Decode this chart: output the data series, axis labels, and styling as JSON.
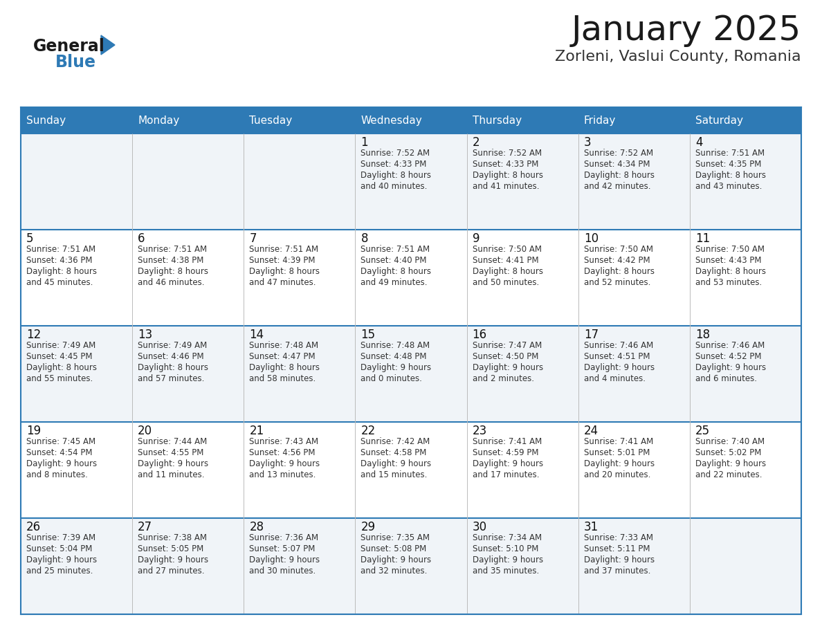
{
  "title": "January 2025",
  "subtitle": "Zorleni, Vaslui County, Romania",
  "days_of_week": [
    "Sunday",
    "Monday",
    "Tuesday",
    "Wednesday",
    "Thursday",
    "Friday",
    "Saturday"
  ],
  "header_bg": "#2E7AB5",
  "header_text": "#FFFFFF",
  "cell_bg_odd": "#F0F4F8",
  "cell_bg_even": "#FFFFFF",
  "border_color": "#2E7AB5",
  "text_color": "#333333",
  "day_num_color": "#111111",
  "logo_text1": "General",
  "logo_text2": "Blue",
  "logo_triangle_color": "#2E7AB5",
  "calendar": [
    [
      {
        "day": null,
        "sunrise": null,
        "sunset": null,
        "daylight": null
      },
      {
        "day": null,
        "sunrise": null,
        "sunset": null,
        "daylight": null
      },
      {
        "day": null,
        "sunrise": null,
        "sunset": null,
        "daylight": null
      },
      {
        "day": 1,
        "sunrise": "7:52 AM",
        "sunset": "4:33 PM",
        "daylight": "8 hours and 40 minutes."
      },
      {
        "day": 2,
        "sunrise": "7:52 AM",
        "sunset": "4:33 PM",
        "daylight": "8 hours and 41 minutes."
      },
      {
        "day": 3,
        "sunrise": "7:52 AM",
        "sunset": "4:34 PM",
        "daylight": "8 hours and 42 minutes."
      },
      {
        "day": 4,
        "sunrise": "7:51 AM",
        "sunset": "4:35 PM",
        "daylight": "8 hours and 43 minutes."
      }
    ],
    [
      {
        "day": 5,
        "sunrise": "7:51 AM",
        "sunset": "4:36 PM",
        "daylight": "8 hours and 45 minutes."
      },
      {
        "day": 6,
        "sunrise": "7:51 AM",
        "sunset": "4:38 PM",
        "daylight": "8 hours and 46 minutes."
      },
      {
        "day": 7,
        "sunrise": "7:51 AM",
        "sunset": "4:39 PM",
        "daylight": "8 hours and 47 minutes."
      },
      {
        "day": 8,
        "sunrise": "7:51 AM",
        "sunset": "4:40 PM",
        "daylight": "8 hours and 49 minutes."
      },
      {
        "day": 9,
        "sunrise": "7:50 AM",
        "sunset": "4:41 PM",
        "daylight": "8 hours and 50 minutes."
      },
      {
        "day": 10,
        "sunrise": "7:50 AM",
        "sunset": "4:42 PM",
        "daylight": "8 hours and 52 minutes."
      },
      {
        "day": 11,
        "sunrise": "7:50 AM",
        "sunset": "4:43 PM",
        "daylight": "8 hours and 53 minutes."
      }
    ],
    [
      {
        "day": 12,
        "sunrise": "7:49 AM",
        "sunset": "4:45 PM",
        "daylight": "8 hours and 55 minutes."
      },
      {
        "day": 13,
        "sunrise": "7:49 AM",
        "sunset": "4:46 PM",
        "daylight": "8 hours and 57 minutes."
      },
      {
        "day": 14,
        "sunrise": "7:48 AM",
        "sunset": "4:47 PM",
        "daylight": "8 hours and 58 minutes."
      },
      {
        "day": 15,
        "sunrise": "7:48 AM",
        "sunset": "4:48 PM",
        "daylight": "9 hours and 0 minutes."
      },
      {
        "day": 16,
        "sunrise": "7:47 AM",
        "sunset": "4:50 PM",
        "daylight": "9 hours and 2 minutes."
      },
      {
        "day": 17,
        "sunrise": "7:46 AM",
        "sunset": "4:51 PM",
        "daylight": "9 hours and 4 minutes."
      },
      {
        "day": 18,
        "sunrise": "7:46 AM",
        "sunset": "4:52 PM",
        "daylight": "9 hours and 6 minutes."
      }
    ],
    [
      {
        "day": 19,
        "sunrise": "7:45 AM",
        "sunset": "4:54 PM",
        "daylight": "9 hours and 8 minutes."
      },
      {
        "day": 20,
        "sunrise": "7:44 AM",
        "sunset": "4:55 PM",
        "daylight": "9 hours and 11 minutes."
      },
      {
        "day": 21,
        "sunrise": "7:43 AM",
        "sunset": "4:56 PM",
        "daylight": "9 hours and 13 minutes."
      },
      {
        "day": 22,
        "sunrise": "7:42 AM",
        "sunset": "4:58 PM",
        "daylight": "9 hours and 15 minutes."
      },
      {
        "day": 23,
        "sunrise": "7:41 AM",
        "sunset": "4:59 PM",
        "daylight": "9 hours and 17 minutes."
      },
      {
        "day": 24,
        "sunrise": "7:41 AM",
        "sunset": "5:01 PM",
        "daylight": "9 hours and 20 minutes."
      },
      {
        "day": 25,
        "sunrise": "7:40 AM",
        "sunset": "5:02 PM",
        "daylight": "9 hours and 22 minutes."
      }
    ],
    [
      {
        "day": 26,
        "sunrise": "7:39 AM",
        "sunset": "5:04 PM",
        "daylight": "9 hours and 25 minutes."
      },
      {
        "day": 27,
        "sunrise": "7:38 AM",
        "sunset": "5:05 PM",
        "daylight": "9 hours and 27 minutes."
      },
      {
        "day": 28,
        "sunrise": "7:36 AM",
        "sunset": "5:07 PM",
        "daylight": "9 hours and 30 minutes."
      },
      {
        "day": 29,
        "sunrise": "7:35 AM",
        "sunset": "5:08 PM",
        "daylight": "9 hours and 32 minutes."
      },
      {
        "day": 30,
        "sunrise": "7:34 AM",
        "sunset": "5:10 PM",
        "daylight": "9 hours and 35 minutes."
      },
      {
        "day": 31,
        "sunrise": "7:33 AM",
        "sunset": "5:11 PM",
        "daylight": "9 hours and 37 minutes."
      },
      {
        "day": null,
        "sunrise": null,
        "sunset": null,
        "daylight": null
      }
    ]
  ]
}
